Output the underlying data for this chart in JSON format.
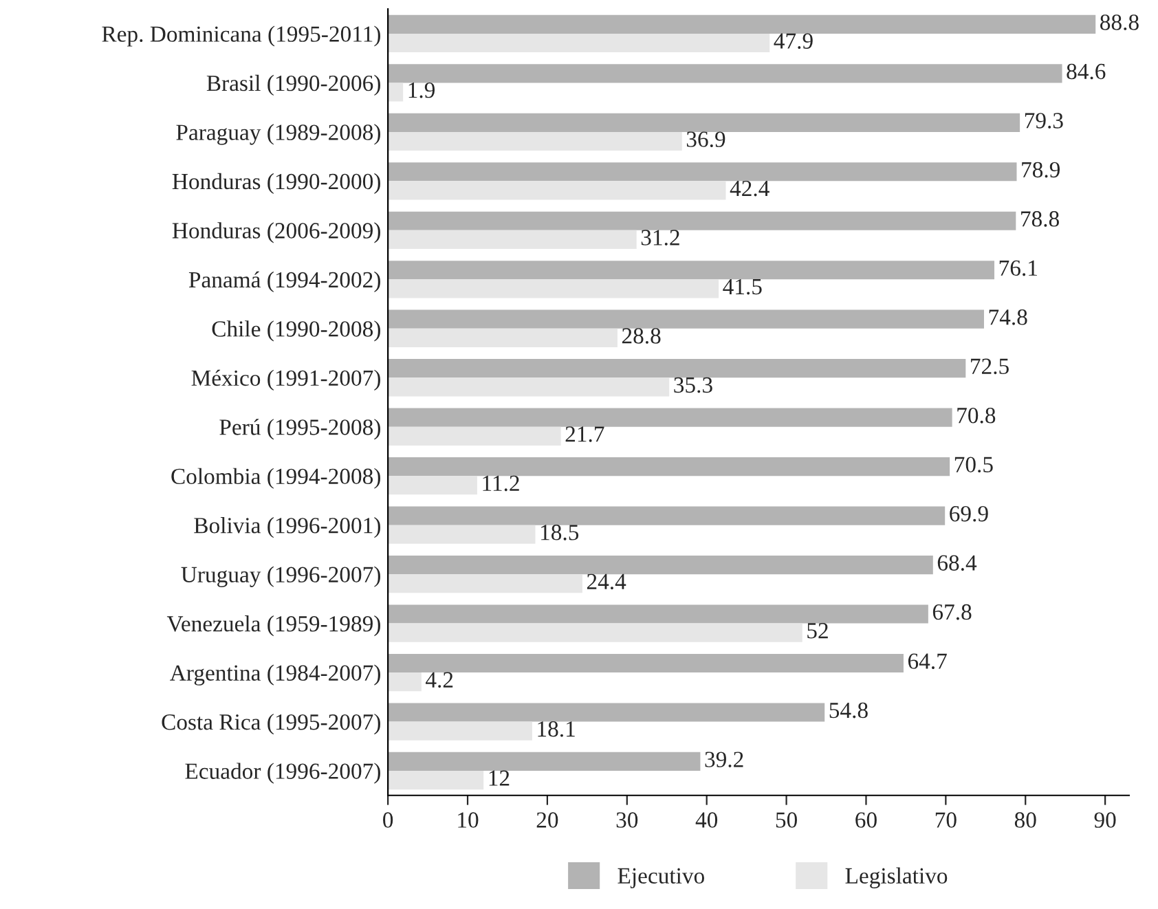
{
  "chart_data": {
    "type": "bar",
    "orientation": "horizontal",
    "categories": [
      "Rep. Dominicana (1995-2011)",
      "Brasil (1990-2006)",
      "Paraguay (1989-2008)",
      "Honduras (1990-2000)",
      "Honduras (2006-2009)",
      "Panamá (1994-2002)",
      "Chile (1990-2008)",
      "México (1991-2007)",
      "Perú (1995-2008)",
      "Colombia (1994-2008)",
      "Bolivia (1996-2001)",
      "Uruguay (1996-2007)",
      "Venezuela (1959-1989)",
      "Argentina (1984-2007)",
      "Costa Rica (1995-2007)",
      "Ecuador (1996-2007)"
    ],
    "series": [
      {
        "name": "Ejecutivo",
        "color": "#b3b3b3",
        "values": [
          88.8,
          84.6,
          79.3,
          78.9,
          78.8,
          76.1,
          74.8,
          72.5,
          70.8,
          70.5,
          69.9,
          68.4,
          67.8,
          64.7,
          54.8,
          39.2
        ]
      },
      {
        "name": "Legislativo",
        "color": "#e6e6e6",
        "values": [
          47.9,
          1.9,
          36.9,
          42.4,
          31.2,
          41.5,
          28.8,
          35.3,
          21.7,
          11.2,
          18.5,
          24.4,
          52,
          4.2,
          18.1,
          12
        ]
      }
    ],
    "xlim": [
      0,
      93
    ],
    "xticks": [
      0,
      10,
      20,
      30,
      40,
      50,
      60,
      70,
      80,
      90
    ],
    "data_labels": true,
    "grid": false,
    "legend": "bottom"
  }
}
